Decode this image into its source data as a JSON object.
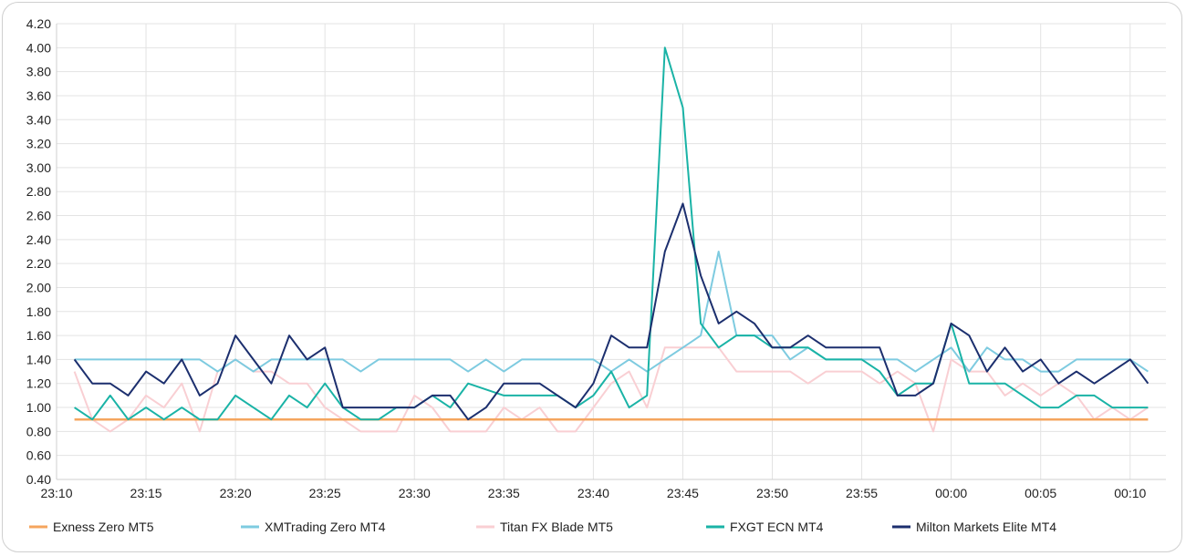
{
  "chart_data": {
    "type": "line",
    "title": "",
    "xlabel": "",
    "ylabel": "",
    "ylim": [
      0.4,
      4.2
    ],
    "y_ticks": [
      "0.40",
      "0.60",
      "0.80",
      "1.00",
      "1.20",
      "1.40",
      "1.60",
      "1.80",
      "2.00",
      "2.20",
      "2.40",
      "2.60",
      "2.80",
      "3.00",
      "3.20",
      "3.40",
      "3.60",
      "3.80",
      "4.00",
      "4.20"
    ],
    "x_ticks": [
      "23:10",
      "23:15",
      "23:20",
      "23:25",
      "23:30",
      "23:35",
      "23:40",
      "23:45",
      "23:50",
      "23:55",
      "00:00",
      "00:05",
      "00:10"
    ],
    "x_start": "23:11",
    "x_step_minutes": 1,
    "grid": true,
    "legend_position": "bottom",
    "series": [
      {
        "name": "Exness Zero MT5",
        "color": "#f5a55e",
        "values": [
          0.9,
          0.9,
          0.9,
          0.9,
          0.9,
          0.9,
          0.9,
          0.9,
          0.9,
          0.9,
          0.9,
          0.9,
          0.9,
          0.9,
          0.9,
          0.9,
          0.9,
          0.9,
          0.9,
          0.9,
          0.9,
          0.9,
          0.9,
          0.9,
          0.9,
          0.9,
          0.9,
          0.9,
          0.9,
          0.9,
          0.9,
          0.9,
          0.9,
          0.9,
          0.9,
          0.9,
          0.9,
          0.9,
          0.9,
          0.9,
          0.9,
          0.9,
          0.9,
          0.9,
          0.9,
          0.9,
          0.9,
          0.9,
          0.9,
          0.9,
          0.9,
          0.9,
          0.9,
          0.9,
          0.9,
          0.9,
          0.9,
          0.9,
          0.9,
          0.9,
          0.9
        ]
      },
      {
        "name": "XMTrading Zero MT4",
        "color": "#7ecbe0",
        "values": [
          1.4,
          1.4,
          1.4,
          1.4,
          1.4,
          1.4,
          1.4,
          1.4,
          1.3,
          1.4,
          1.3,
          1.4,
          1.4,
          1.4,
          1.4,
          1.4,
          1.3,
          1.4,
          1.4,
          1.4,
          1.4,
          1.4,
          1.3,
          1.4,
          1.3,
          1.4,
          1.4,
          1.4,
          1.4,
          1.4,
          1.3,
          1.4,
          1.3,
          1.4,
          1.5,
          1.6,
          2.3,
          1.6,
          1.6,
          1.6,
          1.4,
          1.5,
          1.4,
          1.4,
          1.4,
          1.4,
          1.4,
          1.3,
          1.4,
          1.5,
          1.3,
          1.5,
          1.4,
          1.4,
          1.3,
          1.3,
          1.4,
          1.4,
          1.4,
          1.4,
          1.3
        ]
      },
      {
        "name": "Titan FX Blade MT5",
        "color": "#f9cfd3",
        "values": [
          1.3,
          0.9,
          0.8,
          0.9,
          1.1,
          1.0,
          1.2,
          0.8,
          1.3,
          1.4,
          1.3,
          1.3,
          1.2,
          1.2,
          1.0,
          0.9,
          0.8,
          0.8,
          0.8,
          1.1,
          1.0,
          0.8,
          0.8,
          0.8,
          1.0,
          0.9,
          1.0,
          0.8,
          0.8,
          1.0,
          1.2,
          1.3,
          1.0,
          1.5,
          1.5,
          1.5,
          1.5,
          1.3,
          1.3,
          1.3,
          1.3,
          1.2,
          1.3,
          1.3,
          1.3,
          1.2,
          1.3,
          1.2,
          0.8,
          1.4,
          1.3,
          1.3,
          1.1,
          1.2,
          1.1,
          1.2,
          1.1,
          0.9,
          1.0,
          0.9,
          1.0
        ]
      },
      {
        "name": "FXGT ECN MT4",
        "color": "#1ab3a6",
        "values": [
          1.0,
          0.9,
          1.1,
          0.9,
          1.0,
          0.9,
          1.0,
          0.9,
          0.9,
          1.1,
          1.0,
          0.9,
          1.1,
          1.0,
          1.2,
          1.0,
          0.9,
          0.9,
          1.0,
          1.0,
          1.1,
          1.0,
          1.2,
          1.15,
          1.1,
          1.1,
          1.1,
          1.1,
          1.0,
          1.1,
          1.3,
          1.0,
          1.1,
          4.0,
          3.5,
          1.7,
          1.5,
          1.6,
          1.6,
          1.5,
          1.5,
          1.5,
          1.4,
          1.4,
          1.4,
          1.3,
          1.1,
          1.2,
          1.2,
          1.7,
          1.2,
          1.2,
          1.2,
          1.1,
          1.0,
          1.0,
          1.1,
          1.1,
          1.0,
          1.0,
          1.0
        ]
      },
      {
        "name": "Milton Markets Elite MT4",
        "color": "#1c2f6e",
        "values": [
          1.4,
          1.2,
          1.2,
          1.1,
          1.3,
          1.2,
          1.4,
          1.1,
          1.2,
          1.6,
          1.4,
          1.2,
          1.6,
          1.4,
          1.5,
          1.0,
          1.0,
          1.0,
          1.0,
          1.0,
          1.1,
          1.1,
          0.9,
          1.0,
          1.2,
          1.2,
          1.2,
          1.1,
          1.0,
          1.2,
          1.6,
          1.5,
          1.5,
          2.3,
          2.7,
          2.1,
          1.7,
          1.8,
          1.7,
          1.5,
          1.5,
          1.6,
          1.5,
          1.5,
          1.5,
          1.5,
          1.1,
          1.1,
          1.2,
          1.7,
          1.6,
          1.3,
          1.5,
          1.3,
          1.4,
          1.2,
          1.3,
          1.2,
          1.3,
          1.4,
          1.2
        ]
      }
    ]
  }
}
